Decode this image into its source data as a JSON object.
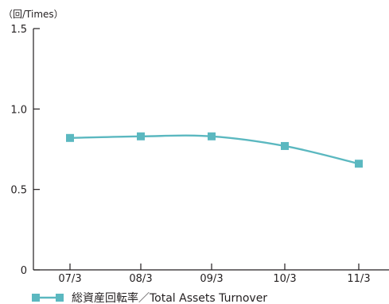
{
  "chart_data": {
    "type": "line",
    "unit_label": "（回/Times）",
    "x_categories": [
      "07/3",
      "08/3",
      "09/3",
      "10/3",
      "11/3"
    ],
    "y_ticks": [
      "0",
      "0.5",
      "1.0",
      "1.5"
    ],
    "ylim": [
      0,
      1.5
    ],
    "grid": false,
    "legend_position": "bottom-left",
    "series": [
      {
        "name": "総資産回転率／Total Assets Turnover",
        "color": "#5bb8c0",
        "values": [
          0.82,
          0.83,
          0.83,
          0.77,
          0.66
        ]
      }
    ]
  }
}
